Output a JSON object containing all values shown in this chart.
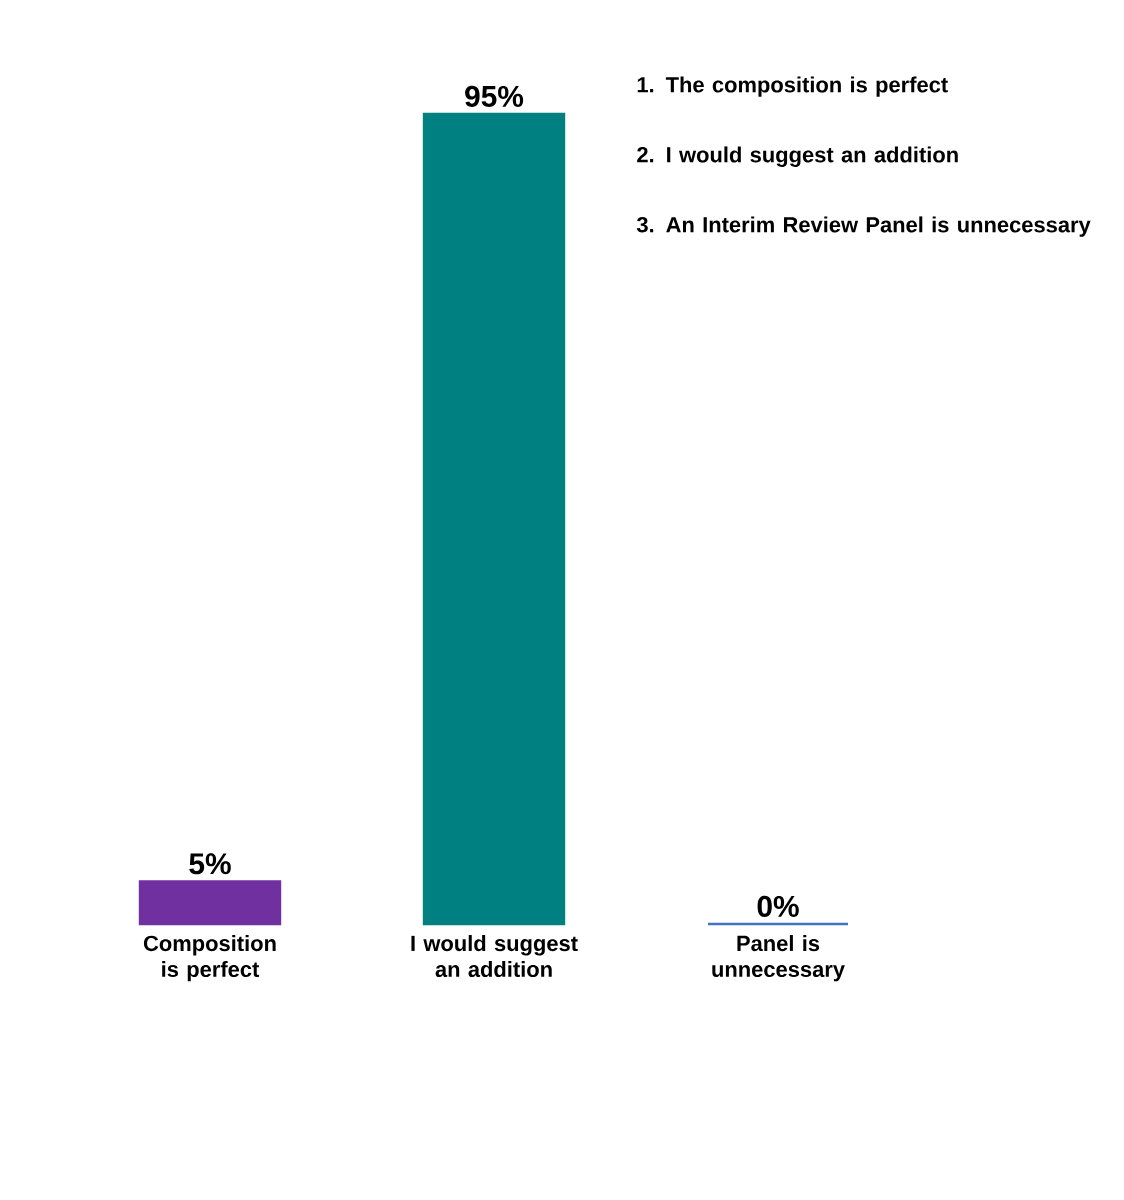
{
  "chart_data": {
    "type": "bar",
    "categories": [
      "Composition is perfect",
      "I would suggest an addition",
      "Panel is unnecessary"
    ],
    "values": [
      5,
      95,
      0
    ],
    "colors": [
      "#7030a0",
      "#008080",
      "#4472c4"
    ],
    "value_labels": [
      "5%",
      "95%",
      "0%"
    ],
    "annotations": [
      "1. The composition is perfect",
      "2. I would suggest an addition",
      "3. An Interim Review Panel is unnecessary"
    ]
  }
}
